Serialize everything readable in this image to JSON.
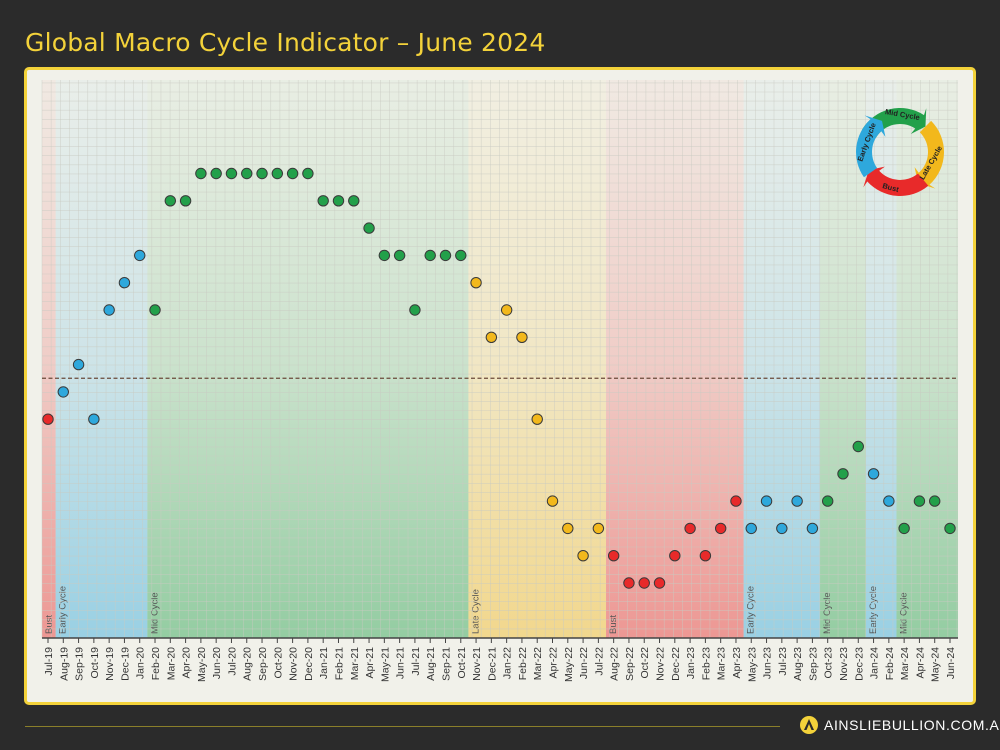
{
  "title": "Global Macro Cycle Indicator – June 2024",
  "brand": "AINSLIEBULLION.COM.AU",
  "cycle_legend": [
    "Early Cycle",
    "Mid Cycle",
    "Late Cycle",
    "Bust"
  ],
  "colors": {
    "Bust": "#e82a2a",
    "Early Cycle": "#2ea8dc",
    "Mid Cycle": "#22a04a",
    "Late Cycle": "#f2b81c",
    "accent": "#f3d23a"
  },
  "chart_data": {
    "type": "scatter",
    "title": "Global Macro Cycle Indicator – June 2024",
    "xlabel": "",
    "ylabel": "",
    "grid": true,
    "threshold_line": "dashed horizontal line between levels 8 and 9",
    "categories": [
      "Jul-19",
      "Aug-19",
      "Sep-19",
      "Oct-19",
      "Nov-19",
      "Dec-19",
      "Jan-20",
      "Feb-20",
      "Mar-20",
      "Apr-20",
      "May-20",
      "Jun-20",
      "Jul-20",
      "Aug-20",
      "Sep-20",
      "Oct-20",
      "Nov-20",
      "Dec-20",
      "Jan-21",
      "Feb-21",
      "Mar-21",
      "Apr-21",
      "May-21",
      "Jun-21",
      "Jul-21",
      "Aug-21",
      "Sep-21",
      "Oct-21",
      "Nov-21",
      "Dec-21",
      "Jan-22",
      "Feb-22",
      "Mar-22",
      "Apr-22",
      "May-22",
      "Jun-22",
      "Jul-22",
      "Aug-22",
      "Sep-22",
      "Oct-22",
      "Nov-22",
      "Dec-22",
      "Jan-23",
      "Feb-23",
      "Mar-23",
      "Apr-23",
      "May-23",
      "Jun-23",
      "Jul-23",
      "Aug-23",
      "Sep-23",
      "Oct-23",
      "Nov-23",
      "Dec-23",
      "Jan-24",
      "Feb-24",
      "Mar-24",
      "Apr-24",
      "May-24",
      "Jun-24"
    ],
    "values": [
      7,
      8,
      9,
      7,
      11,
      12,
      13,
      11,
      15,
      15,
      16,
      16,
      16,
      16,
      16,
      16,
      16,
      16,
      15,
      15,
      15,
      14,
      13,
      13,
      11,
      13,
      13,
      13,
      12,
      10,
      11,
      10,
      7,
      4,
      3,
      2,
      3,
      2,
      1,
      1,
      1,
      2,
      3,
      2,
      3,
      4,
      3,
      4,
      3,
      4,
      3,
      4,
      5,
      6,
      5,
      4,
      3,
      4,
      4,
      3
    ],
    "phases": [
      "Bust",
      "Early Cycle",
      "Early Cycle",
      "Early Cycle",
      "Early Cycle",
      "Early Cycle",
      "Early Cycle",
      "Mid Cycle",
      "Mid Cycle",
      "Mid Cycle",
      "Mid Cycle",
      "Mid Cycle",
      "Mid Cycle",
      "Mid Cycle",
      "Mid Cycle",
      "Mid Cycle",
      "Mid Cycle",
      "Mid Cycle",
      "Mid Cycle",
      "Mid Cycle",
      "Mid Cycle",
      "Mid Cycle",
      "Mid Cycle",
      "Mid Cycle",
      "Mid Cycle",
      "Mid Cycle",
      "Mid Cycle",
      "Mid Cycle",
      "Late Cycle",
      "Late Cycle",
      "Late Cycle",
      "Late Cycle",
      "Late Cycle",
      "Late Cycle",
      "Late Cycle",
      "Late Cycle",
      "Late Cycle",
      "Bust",
      "Bust",
      "Bust",
      "Bust",
      "Bust",
      "Bust",
      "Bust",
      "Bust",
      "Bust",
      "Early Cycle",
      "Early Cycle",
      "Early Cycle",
      "Early Cycle",
      "Early Cycle",
      "Mid Cycle",
      "Mid Cycle",
      "Mid Cycle",
      "Early Cycle",
      "Early Cycle",
      "Mid Cycle",
      "Mid Cycle",
      "Mid Cycle",
      "Mid Cycle"
    ],
    "bands": [
      {
        "label": "Bust",
        "start": "Jul-19",
        "end": "Jul-19"
      },
      {
        "label": "Early Cycle",
        "start": "Aug-19",
        "end": "Jan-20"
      },
      {
        "label": "Mid Cycle",
        "start": "Feb-20",
        "end": "Oct-21"
      },
      {
        "label": "Late Cycle",
        "start": "Nov-21",
        "end": "Jul-22"
      },
      {
        "label": "Bust",
        "start": "Aug-22",
        "end": "Apr-23"
      },
      {
        "label": "Early Cycle",
        "start": "May-23",
        "end": "Sep-23"
      },
      {
        "label": "Mid Cycle",
        "start": "Oct-23",
        "end": "Dec-23"
      },
      {
        "label": "Early Cycle",
        "start": "Jan-24",
        "end": "Feb-24"
      },
      {
        "label": "Mid Cycle",
        "start": "Mar-24",
        "end": "Jun-24"
      }
    ],
    "ylim": [
      0,
      17.5
    ],
    "threshold": 8.5
  }
}
